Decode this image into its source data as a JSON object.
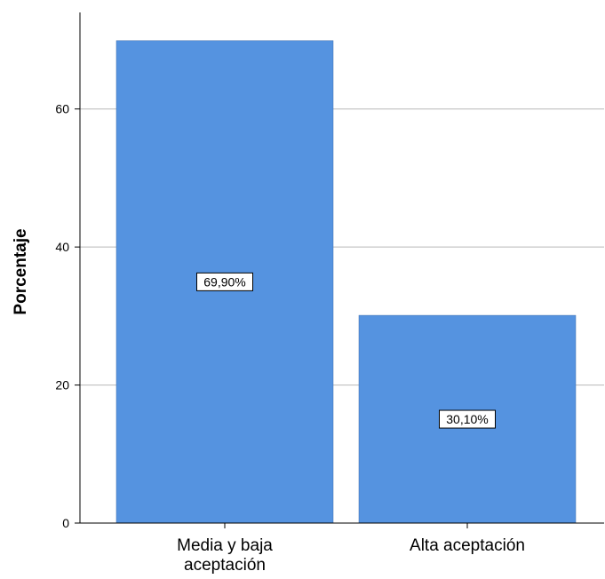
{
  "chart_data": {
    "type": "bar",
    "title": "",
    "xlabel": "",
    "ylabel": "Porcentaje",
    "categories": [
      [
        "Media y baja",
        "aceptación"
      ],
      [
        "Alta aceptación"
      ]
    ],
    "values": [
      69.9,
      30.1
    ],
    "data_labels": [
      "69,90%",
      "30,10%"
    ],
    "ylim": [
      0,
      70
    ],
    "yticks": [
      0,
      20,
      40,
      60
    ],
    "grid": true,
    "bar_color": "#5593e0",
    "legend": "none"
  }
}
